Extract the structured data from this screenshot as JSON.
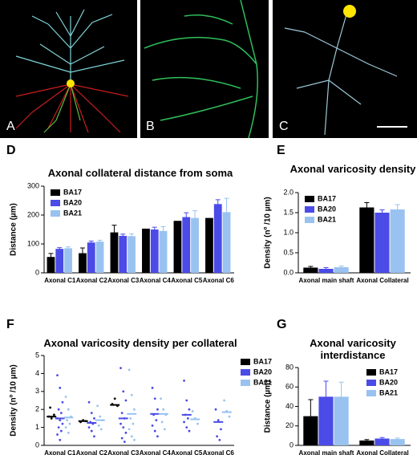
{
  "images": [
    {
      "label": "A"
    },
    {
      "label": "B"
    },
    {
      "label": "C"
    }
  ],
  "chart_data": [
    {
      "type": "bar",
      "panel": "D",
      "title": "Axonal collateral distance from soma",
      "y_label": "Distance (µm)",
      "categories": [
        "Axonal C1",
        "Axonal C2",
        "Axonal C3",
        "Axonal C4",
        "Axonal C5",
        "Axonal C6"
      ],
      "series": [
        {
          "name": "BA17",
          "color": "#000000",
          "values": [
            55,
            68,
            140,
            153,
            180,
            190
          ],
          "errors": [
            12,
            18,
            25,
            null,
            null,
            null
          ]
        },
        {
          "name": "BA20",
          "color": "#4b4be8",
          "values": [
            83,
            105,
            128,
            150,
            193,
            238
          ],
          "errors": [
            4,
            5,
            6,
            8,
            15,
            15
          ]
        },
        {
          "name": "BA21",
          "color": "#99c2f0",
          "values": [
            85,
            108,
            127,
            145,
            190,
            210
          ],
          "errors": [
            5,
            5,
            8,
            15,
            25,
            48
          ]
        }
      ],
      "ylim": [
        0,
        300
      ],
      "yticks": [
        0,
        100,
        200,
        300
      ],
      "legend": "upper left"
    },
    {
      "type": "bar",
      "panel": "E",
      "title": "Axonal varicosity density",
      "y_label": "Density (nº /10 µm)",
      "categories": [
        "Axonal main shaft",
        "Axonal Collateral"
      ],
      "series": [
        {
          "name": "BA17",
          "color": "#000000",
          "values": [
            0.13,
            1.63
          ],
          "errors": [
            0.03,
            0.12
          ]
        },
        {
          "name": "BA20",
          "color": "#4b4be8",
          "values": [
            0.1,
            1.5
          ],
          "errors": [
            0.03,
            0.07
          ]
        },
        {
          "name": "BA21",
          "color": "#99c2f0",
          "values": [
            0.14,
            1.58
          ],
          "errors": [
            0.03,
            0.12
          ]
        }
      ],
      "ylim": [
        0,
        2
      ],
      "yticks": [
        {
          "value": 0,
          "label": "0.0"
        },
        {
          "value": 0.5,
          "label": "0.5"
        },
        {
          "value": 1,
          "label": "1.0"
        },
        {
          "value": 1.5,
          "label": "1.5"
        },
        {
          "value": 2,
          "label": "2.0"
        }
      ],
      "legend": "upper left"
    },
    {
      "type": "strip",
      "panel": "F",
      "title": "Axonal varicosity density per collateral",
      "y_label": "Density (nº /10 µm)",
      "categories": [
        "Axonal C1",
        "Axonal C2",
        "Axonal C3",
        "Axonal C4",
        "Axonal C5",
        "Axonal C6"
      ],
      "series": [
        {
          "name": "BA17",
          "color": "#000000",
          "values": [
            1.6,
            1.35,
            2.25,
            null,
            null,
            null
          ],
          "points": [
            [
              1.6,
              1.5,
              1.7,
              2.1
            ],
            [
              1.3,
              1.4,
              1.35
            ],
            [
              2.3,
              2.6,
              2.2
            ],
            [],
            [],
            []
          ]
        },
        {
          "name": "BA20",
          "color": "#4b4be8",
          "values": [
            1.5,
            1.25,
            1.5,
            1.75,
            1.7,
            1.3
          ],
          "points": [
            [
              3.9,
              3.2,
              2.4,
              2.0,
              1.8,
              1.5,
              1.4,
              1.2,
              1.0,
              0.8,
              0.6,
              0.3
            ],
            [
              2.4,
              1.8,
              1.5,
              1.3,
              1.2,
              1.0,
              0.8,
              0.5
            ],
            [
              4.3,
              3.0,
              2.5,
              1.8,
              1.5,
              1.2,
              1.0,
              0.7,
              0.4,
              0.2
            ],
            [
              3.2,
              2.6,
              2.0,
              1.7,
              1.4,
              1.1,
              0.8,
              0.5
            ],
            [
              3.6,
              2.5,
              2.0,
              1.7,
              1.5,
              1.3,
              1.0,
              0.8
            ],
            [
              2.0,
              1.4,
              0.9,
              0.5,
              0.3
            ]
          ]
        },
        {
          "name": "BA21",
          "color": "#99c2f0",
          "values": [
            1.55,
            1.4,
            1.75,
            1.75,
            1.45,
            1.85
          ],
          "points": [
            [
              2.7,
              2.0,
              1.6,
              1.4,
              1.2,
              1.0,
              0.7
            ],
            [
              2.2,
              1.6,
              1.4,
              1.1,
              0.9
            ],
            [
              4.2,
              2.8,
              2.0,
              1.5,
              1.2,
              0.9,
              0.5,
              0.3
            ],
            [
              2.6,
              2.0,
              1.7,
              1.3,
              0.9
            ],
            [
              1.9,
              1.5,
              1.2
            ],
            [
              2.5,
              1.9,
              1.6
            ]
          ]
        }
      ],
      "ylim": [
        0,
        5
      ],
      "yticks": [
        0,
        1,
        2,
        3,
        4,
        5
      ],
      "legend": "right"
    },
    {
      "type": "bar",
      "panel": "G",
      "title": "Axonal varicosity interdistance",
      "y_label": "Distance (µm)",
      "categories": [
        "Axonal main shaft",
        "Axonal Collateral"
      ],
      "series": [
        {
          "name": "BA17",
          "color": "#000000",
          "values": [
            30,
            5
          ],
          "errors": [
            17,
            1
          ]
        },
        {
          "name": "BA20",
          "color": "#4b4be8",
          "values": [
            50,
            7
          ],
          "errors": [
            16,
            1
          ]
        },
        {
          "name": "BA21",
          "color": "#99c2f0",
          "values": [
            50,
            6.5
          ],
          "errors": [
            15,
            1
          ]
        }
      ],
      "ylim": [
        0,
        80
      ],
      "yticks": [
        0,
        20,
        40,
        60,
        80
      ],
      "legend": "upper right"
    }
  ]
}
